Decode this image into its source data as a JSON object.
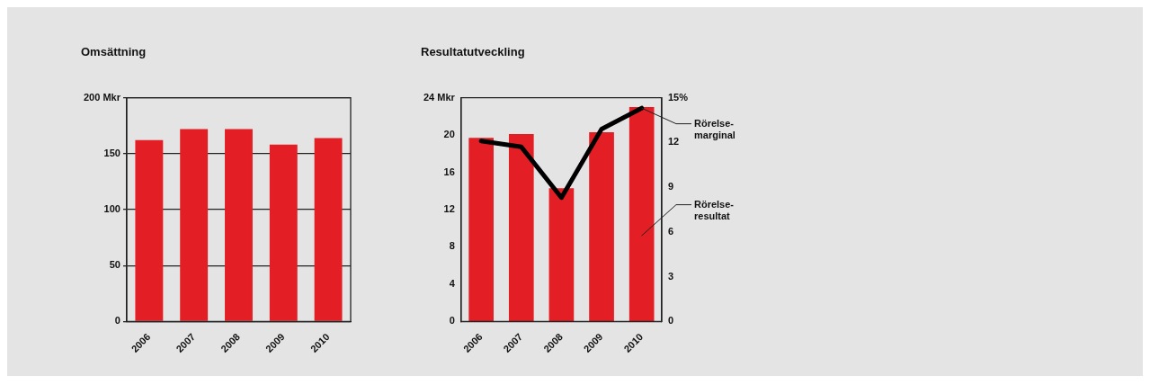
{
  "chart_data": [
    {
      "type": "bar",
      "title": "Omsättning",
      "categories": [
        "2006",
        "2007",
        "2008",
        "2009",
        "2010"
      ],
      "series": [
        {
          "color": "#e31e24",
          "values": [
            162,
            172,
            172,
            158,
            164
          ]
        }
      ],
      "ylim": [
        0,
        200
      ],
      "yticks": [
        0,
        50,
        100,
        150,
        {
          "value": 200,
          "label": "200 Mkr"
        }
      ],
      "grid": "y"
    },
    {
      "type": "bar",
      "title": "Resultatutveckling",
      "categories": [
        "2006",
        "2007",
        "2008",
        "2009",
        "2010"
      ],
      "series": [
        {
          "name": "Rörelse-resultat",
          "color": "#e31e24",
          "values": [
            19.7,
            20.1,
            14.3,
            20.3,
            23.0
          ]
        },
        {
          "name": "Rörelse-marginal",
          "type": "line",
          "axis": "y2",
          "color": "#000000",
          "values": [
            12.1,
            11.7,
            8.3,
            12.9,
            14.3
          ]
        }
      ],
      "ylim": [
        0,
        24
      ],
      "yticks": [
        0,
        4,
        8,
        12,
        16,
        20,
        {
          "value": 24,
          "label": "24 Mkr"
        }
      ],
      "y2lim": [
        0,
        15
      ],
      "y2ticks": [
        0,
        3,
        6,
        9,
        12,
        {
          "value": 15,
          "label": "15%"
        }
      ],
      "grid": false
    }
  ]
}
